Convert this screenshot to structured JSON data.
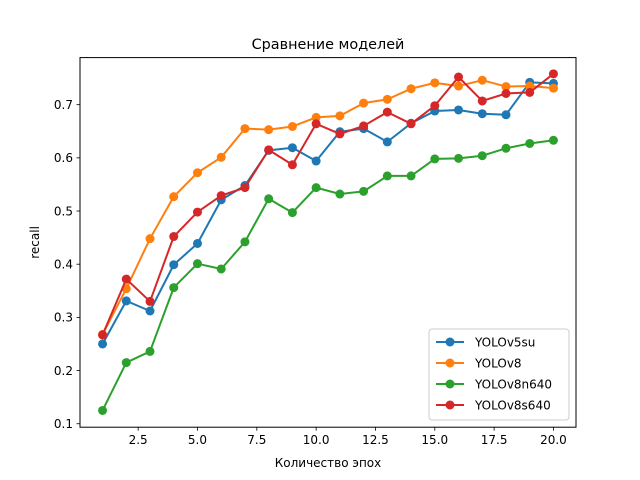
{
  "chart_data": {
    "type": "line",
    "title": "Сравнение моделей",
    "xlabel": "Количество эпох",
    "ylabel": "recall",
    "xlim": [
      0.05,
      20.95
    ],
    "ylim": [
      0.0935,
      0.7885
    ],
    "xticks": [
      2.5,
      5.0,
      7.5,
      10.0,
      12.5,
      15.0,
      17.5,
      20.0
    ],
    "xtick_labels": [
      "2.5",
      "5.0",
      "7.5",
      "10.0",
      "12.5",
      "15.0",
      "17.5",
      "20.0"
    ],
    "yticks": [
      0.1,
      0.2,
      0.3,
      0.4,
      0.5,
      0.6,
      0.7
    ],
    "ytick_labels": [
      "0.1",
      "0.2",
      "0.3",
      "0.4",
      "0.5",
      "0.6",
      "0.7"
    ],
    "grid": false,
    "legend_position": "lower-right",
    "x": [
      1,
      2,
      3,
      4,
      5,
      6,
      7,
      8,
      9,
      10,
      11,
      12,
      13,
      14,
      15,
      16,
      17,
      18,
      19,
      20
    ],
    "series": [
      {
        "name": "YOLOv5su",
        "color": "#1f77b4",
        "values": [
          0.25,
          0.331,
          0.312,
          0.399,
          0.439,
          0.521,
          0.548,
          0.614,
          0.619,
          0.594,
          0.649,
          0.655,
          0.63,
          0.665,
          0.688,
          0.69,
          0.683,
          0.681,
          0.742,
          0.74
        ]
      },
      {
        "name": "YOLOv8",
        "color": "#ff7f0e",
        "values": [
          0.268,
          0.354,
          0.448,
          0.527,
          0.572,
          0.601,
          0.655,
          0.653,
          0.659,
          0.676,
          0.679,
          0.703,
          0.71,
          0.73,
          0.741,
          0.735,
          0.746,
          0.734,
          0.735,
          0.731
        ]
      },
      {
        "name": "YOLOv8n640",
        "color": "#2ca02c",
        "values": [
          0.125,
          0.215,
          0.236,
          0.356,
          0.401,
          0.391,
          0.442,
          0.523,
          0.497,
          0.544,
          0.532,
          0.537,
          0.566,
          0.566,
          0.598,
          0.599,
          0.604,
          0.618,
          0.627,
          0.633
        ]
      },
      {
        "name": "YOLOv8s640",
        "color": "#d62728",
        "values": [
          0.267,
          0.372,
          0.33,
          0.452,
          0.498,
          0.529,
          0.544,
          0.615,
          0.587,
          0.664,
          0.645,
          0.66,
          0.686,
          0.664,
          0.698,
          0.752,
          0.707,
          0.721,
          0.723,
          0.758
        ]
      }
    ]
  }
}
